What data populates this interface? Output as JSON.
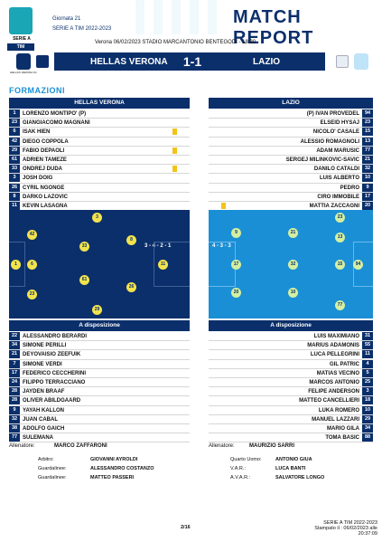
{
  "header": {
    "league_logo_text": "SERIE A",
    "sponsor": "TIM",
    "round": "Giornata 21",
    "competition": "SERIE A TIM 2022-2023",
    "title": "MATCH REPORT",
    "match_line": "Verona 06/02/2023 STADIO MARCANTONIO BENTEGODI - 18:30",
    "home_logo_text": "HELLAS VERONA FC",
    "home_team": "HELLAS VERONA",
    "score": "1-1",
    "away_team": "LAZIO"
  },
  "section_title": "FORMAZIONI",
  "home": {
    "header": "HELLAS VERONA",
    "starters": [
      {
        "num": "1",
        "name": "LORENZO MONTIPO'  (P)"
      },
      {
        "num": "23",
        "name": "GIANGIACOMO MAGNANI"
      },
      {
        "num": "6",
        "name": "ISAK HIEN",
        "yellow": true
      },
      {
        "num": "42",
        "name": "DIEGO COPPOLA"
      },
      {
        "num": "29",
        "name": "FABIO DEPAOLI",
        "yellow": true
      },
      {
        "num": "61",
        "name": "ADRIEN TAMEZE"
      },
      {
        "num": "33",
        "name": "ONDREJ DUDA",
        "yellow": true
      },
      {
        "num": "3",
        "name": "JOSH DOIG"
      },
      {
        "num": "26",
        "name": "CYRIL NGONGE"
      },
      {
        "num": "8",
        "name": "DARKO LAZOVIC"
      },
      {
        "num": "11",
        "name": "KEVIN LASAGNA"
      }
    ],
    "formation": "3 - 4 - 2 - 1",
    "bench_header": "A disposizione",
    "bench": [
      {
        "num": "22",
        "name": "ALESSANDRO BERARDI"
      },
      {
        "num": "34",
        "name": "SIMONE PERILLI"
      },
      {
        "num": "21",
        "name": "DEYOVAISIO ZEEFUIK"
      },
      {
        "num": "7",
        "name": "SIMONE VERDI"
      },
      {
        "num": "17",
        "name": "FEDERICO CECCHERINI"
      },
      {
        "num": "24",
        "name": "FILIPPO TERRACCIANO"
      },
      {
        "num": "28",
        "name": "JAYDEN BRAAF"
      },
      {
        "num": "28",
        "name": "OLIVER ABILDGAARD"
      },
      {
        "num": "9",
        "name": "YAYAH KALLON"
      },
      {
        "num": "32",
        "name": "JUAN CABAL"
      },
      {
        "num": "38",
        "name": "ADOLFO GAICH"
      },
      {
        "num": "77",
        "name": "SULEMANA"
      }
    ],
    "coach_label": "Allenatore:",
    "coach": "MARCO ZAFFARONI",
    "pitch": [
      "1",
      "42",
      "6",
      "23",
      "33",
      "61",
      "3",
      "29",
      "8",
      "26",
      "11"
    ]
  },
  "away": {
    "header": "LAZIO",
    "starters": [
      {
        "num": "94",
        "name": "(P)   IVAN PROVEDEL"
      },
      {
        "num": "23",
        "name": "ELSEID HYSAJ"
      },
      {
        "num": "15",
        "name": "NICOLO' CASALE"
      },
      {
        "num": "13",
        "name": "ALESSIO ROMAGNOLI"
      },
      {
        "num": "77",
        "name": "ADAM MARUSIC"
      },
      {
        "num": "21",
        "name": "SERGEJ MILINKOVIC-SAVIC"
      },
      {
        "num": "32",
        "name": "DANILO CATALDI"
      },
      {
        "num": "10",
        "name": "LUIS ALBERTO"
      },
      {
        "num": "9",
        "name": "PEDRO"
      },
      {
        "num": "17",
        "name": "CIRO IMMOBILE"
      },
      {
        "num": "20",
        "name": "MATTIA ZACCAGNI",
        "yellow": true
      }
    ],
    "formation": "4 - 3 - 3",
    "bench_header": "A disposizione",
    "bench": [
      {
        "num": "31",
        "name": "LUIS MAXIMIANO"
      },
      {
        "num": "55",
        "name": "MARIUS ADAMONIS"
      },
      {
        "num": "11",
        "name": "LUCA PELLEGRINI"
      },
      {
        "num": "4",
        "name": "GIL PATRIC"
      },
      {
        "num": "5",
        "name": "MATIAS VECINO"
      },
      {
        "num": "25",
        "name": "MARCOS ANTONIO"
      },
      {
        "num": "3",
        "name": "FELIPE ANDERSON"
      },
      {
        "num": "18",
        "name": "MATTEO CANCELLIERI"
      },
      {
        "num": "10",
        "name": "LUKA ROMERO"
      },
      {
        "num": "29",
        "name": "MANUEL LAZZARI"
      },
      {
        "num": "34",
        "name": "MARIO GILA"
      },
      {
        "num": "88",
        "name": "TOMA BASIC"
      }
    ],
    "coach_label": "Allenatore:",
    "coach": "MAURIZIO SARRI",
    "pitch": [
      "94",
      "13",
      "15",
      "77",
      "23",
      "9",
      "32",
      "17",
      "21",
      "20",
      "10"
    ]
  },
  "officials": {
    "referee_label": "Arbitro:",
    "referee": "GIOVANNI AYROLDI",
    "linesman1_label": "Guardalinee:",
    "linesman1": "ALESSANDRO COSTANZO",
    "linesman2_label": "Guardalinee:",
    "linesman2": "MATTEO PASSERI",
    "fourth_label": "Quarto Uomo:",
    "fourth": "ANTONIO GIUA",
    "var_label": "V.A.R.:",
    "var": "LUCA BANTI",
    "avar_label": "A.V.A.R.:",
    "avar": "SALVATORE LONGO"
  },
  "footer": {
    "page": "2/16",
    "competition": "SERIE A TIM 2022-2023",
    "printed": "Stampato il : 06/02/2023 alle 20:37:09"
  },
  "colors": {
    "navy": "#0b2f6b",
    "blue": "#1a8fd6",
    "yellow": "#f2c318"
  }
}
